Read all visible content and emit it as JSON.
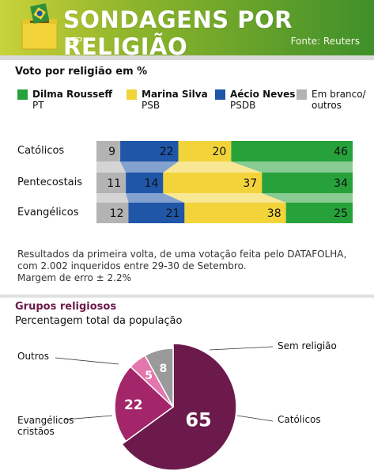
{
  "header": {
    "title": "SONDAGENS POR RELIGIÃO",
    "channel": "RTP",
    "source": "Fonte: Reuters"
  },
  "colors": {
    "dilma": "#27a13a",
    "marina": "#f2d43a",
    "aecio": "#1f56a8",
    "blank": "#b3b3b3",
    "catolicos_pie": "#6b1a4b",
    "evangelicos_pie": "#a3266b",
    "outros_pie": "#e377ad",
    "semreligiao_pie": "#9a9a9a"
  },
  "chart_data": [
    {
      "type": "bar",
      "stacked": true,
      "orientation": "horizontal",
      "title": "Voto por religião em %",
      "categories": [
        "Católicos",
        "Pentecostais",
        "Evangélicos"
      ],
      "series": [
        {
          "name": "Dilma Rousseff",
          "party": "PT",
          "color": "#27a13a",
          "values": [
            46,
            34,
            25
          ]
        },
        {
          "name": "Marina Silva",
          "party": "PSB",
          "color": "#f2d43a",
          "values": [
            20,
            37,
            38
          ]
        },
        {
          "name": "Aécio Neves",
          "party": "PSDB",
          "color": "#1f56a8",
          "values": [
            22,
            14,
            21
          ]
        },
        {
          "name": "Em branco/",
          "party": "outros",
          "color": "#b3b3b3",
          "values": [
            9,
            11,
            12
          ]
        }
      ]
    },
    {
      "type": "pie",
      "title": "Grupos religiosos",
      "subtitle": "Percentagem total da população",
      "slices": [
        {
          "label": "Católicos",
          "value": 65,
          "color": "#6b1a4b"
        },
        {
          "label": "Evangélicos cristãos",
          "label_line1": "Evangélicos",
          "label_line2": "cristãos",
          "value": 22,
          "color": "#a3266b"
        },
        {
          "label": "Outros",
          "value": 5,
          "color": "#e377ad"
        },
        {
          "label": "Sem religião",
          "value": 8,
          "color": "#9a9a9a"
        }
      ]
    }
  ],
  "note": {
    "line1": "Resultados da primeira volta, de uma votação feita pelo DATAFOLHA,",
    "line2": "com 2.002 inqueridos entre 29-30 de Setembro.",
    "line3": "Margem de erro ± 2.2%"
  }
}
